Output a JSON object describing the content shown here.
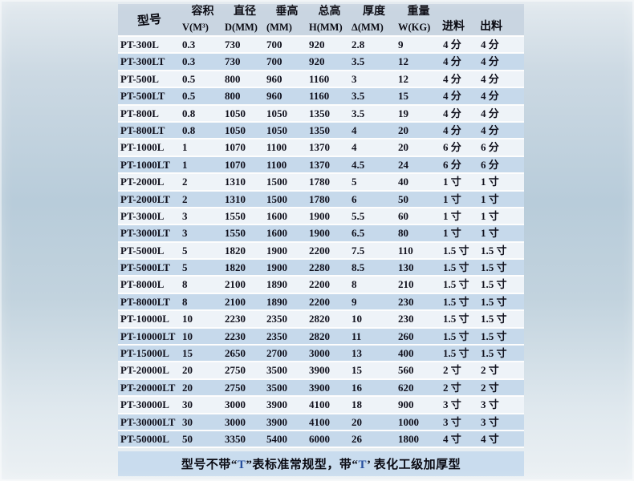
{
  "colors": {
    "header_bg": "#c9d5e1",
    "row_light": "#eef3f8",
    "row_blue": "#c6d9eb",
    "note_bg": "#c9dcee",
    "text": "#10101c",
    "t_accent_blue": "#274f9e",
    "page_gradient_mid": "#b8ccda"
  },
  "table": {
    "header": {
      "model": "型号",
      "cols": [
        {
          "line1": "容积",
          "line2": "V(M³)"
        },
        {
          "line1": "直径",
          "line2": "D(MM)"
        },
        {
          "line1": "垂高",
          "line2": "(MM)"
        },
        {
          "line1": "总高",
          "line2": "H(MM)"
        },
        {
          "line1": "厚度",
          "line2": "Δ(MM)"
        },
        {
          "line1": "重量",
          "line2": "W(KG)"
        }
      ],
      "inlet": "进料",
      "outlet": "出料"
    },
    "rows": [
      {
        "model": "PT-300L",
        "v": "0.3",
        "d": "730",
        "vh": "700",
        "h": "920",
        "t": "2.8",
        "w": "9",
        "inlet": "4 分",
        "outlet": "4 分",
        "shade": "light"
      },
      {
        "model": "PT-300LT",
        "v": "0.3",
        "d": "730",
        "vh": "700",
        "h": "920",
        "t": "3.5",
        "w": "12",
        "inlet": "4 分",
        "outlet": "4 分",
        "shade": "blue"
      },
      {
        "model": "PT-500L",
        "v": "0.5",
        "d": "800",
        "vh": "960",
        "h": "1160",
        "t": "3",
        "w": "12",
        "inlet": "4 分",
        "outlet": "4 分",
        "shade": "light"
      },
      {
        "model": "PT-500LT",
        "v": "0.5",
        "d": "800",
        "vh": "960",
        "h": "1160",
        "t": "3.5",
        "w": "15",
        "inlet": "4 分",
        "outlet": "4 分",
        "shade": "blue"
      },
      {
        "model": "PT-800L",
        "v": "0.8",
        "d": "1050",
        "vh": "1050",
        "h": "1350",
        "t": "3.5",
        "w": "19",
        "inlet": "4 分",
        "outlet": "4 分",
        "shade": "light"
      },
      {
        "model": "PT-800LT",
        "v": "0.8",
        "d": "1050",
        "vh": "1050",
        "h": "1350",
        "t": "4",
        "w": "20",
        "inlet": "4 分",
        "outlet": "4 分",
        "shade": "blue"
      },
      {
        "model": "PT-1000L",
        "v": "1",
        "d": "1070",
        "vh": "1100",
        "h": "1370",
        "t": "4",
        "w": "20",
        "inlet": "6 分",
        "outlet": "6 分",
        "shade": "light"
      },
      {
        "model": "PT-1000LT",
        "v": "1",
        "d": "1070",
        "vh": "1100",
        "h": "1370",
        "t": "4.5",
        "w": "24",
        "inlet": "6 分",
        "outlet": "6 分",
        "shade": "blue"
      },
      {
        "model": "PT-2000L",
        "v": "2",
        "d": "1310",
        "vh": "1500",
        "h": "1780",
        "t": "5",
        "w": "40",
        "inlet": "1 寸",
        "outlet": "1 寸",
        "shade": "light"
      },
      {
        "model": "PT-2000LT",
        "v": "2",
        "d": "1310",
        "vh": "1500",
        "h": "1780",
        "t": "6",
        "w": "50",
        "inlet": "1 寸",
        "outlet": "1 寸",
        "shade": "blue"
      },
      {
        "model": "PT-3000L",
        "v": "3",
        "d": "1550",
        "vh": "1600",
        "h": "1900",
        "t": "5.5",
        "w": "60",
        "inlet": "1 寸",
        "outlet": "1 寸",
        "shade": "light"
      },
      {
        "model": "PT-3000LT",
        "v": "3",
        "d": "1550",
        "vh": "1600",
        "h": "1900",
        "t": "6.5",
        "w": "80",
        "inlet": "1 寸",
        "outlet": "1 寸",
        "shade": "blue"
      },
      {
        "model": "PT-5000L",
        "v": "5",
        "d": "1820",
        "vh": "1900",
        "h": "2200",
        "t": "7.5",
        "w": "110",
        "inlet": "1.5 寸",
        "outlet": "1.5 寸",
        "shade": "light"
      },
      {
        "model": "PT-5000LT",
        "v": "5",
        "d": "1820",
        "vh": "1900",
        "h": "2280",
        "t": "8.5",
        "w": "130",
        "inlet": "1.5 寸",
        "outlet": "1.5 寸",
        "shade": "blue"
      },
      {
        "model": "PT-8000L",
        "v": "8",
        "d": "2100",
        "vh": "1890",
        "h": "2200",
        "t": "8",
        "w": "210",
        "inlet": "1.5 寸",
        "outlet": "1.5 寸",
        "shade": "light"
      },
      {
        "model": "PT-8000LT",
        "v": "8",
        "d": "2100",
        "vh": "1890",
        "h": "2200",
        "t": "9",
        "w": "230",
        "inlet": "1.5 寸",
        "outlet": "1.5 寸",
        "shade": "blue"
      },
      {
        "model": "PT-10000L",
        "v": "10",
        "d": "2230",
        "vh": "2350",
        "h": "2820",
        "t": "10",
        "w": "230",
        "inlet": "1.5 寸",
        "outlet": "1.5 寸",
        "shade": "light"
      },
      {
        "model": "PT-10000LT",
        "v": "10",
        "d": "2230",
        "vh": "2350",
        "h": "2820",
        "t": "11",
        "w": "260",
        "inlet": "1.5 寸",
        "outlet": "1.5 寸",
        "shade": "blue"
      },
      {
        "model": "PT-15000L",
        "v": "15",
        "d": "2650",
        "vh": "2700",
        "h": "3000",
        "t": "13",
        "w": "400",
        "inlet": "1.5 寸",
        "outlet": "1.5 寸",
        "shade": "blue"
      },
      {
        "model": "PT-20000L",
        "v": "20",
        "d": "2750",
        "vh": "3500",
        "h": "3900",
        "t": "15",
        "w": "560",
        "inlet": "2 寸",
        "outlet": "2 寸",
        "shade": "light"
      },
      {
        "model": "PT-20000LT",
        "v": "20",
        "d": "2750",
        "vh": "3500",
        "h": "3900",
        "t": "16",
        "w": "620",
        "inlet": "2 寸",
        "outlet": "2 寸",
        "shade": "blue"
      },
      {
        "model": "PT-30000L",
        "v": "30",
        "d": "3000",
        "vh": "3900",
        "h": "4100",
        "t": "18",
        "w": "900",
        "inlet": "3 寸",
        "outlet": "3 寸",
        "shade": "light"
      },
      {
        "model": "PT-30000LT",
        "v": "30",
        "d": "3000",
        "vh": "3900",
        "h": "4100",
        "t": "20",
        "w": "1000",
        "inlet": "3 寸",
        "outlet": "3 寸",
        "shade": "blue"
      },
      {
        "model": "PT-50000L",
        "v": "50",
        "d": "3350",
        "vh": "5400",
        "h": "6000",
        "t": "26",
        "w": "1800",
        "inlet": "4 寸",
        "outlet": "4 寸",
        "shade": "blue"
      }
    ]
  },
  "footer": {
    "prefix": "型号不带“",
    "t1": "T",
    "middle": "”表标准常规型，带“",
    "t2": "T",
    "suffix": "’ 表化工级加厚型"
  }
}
